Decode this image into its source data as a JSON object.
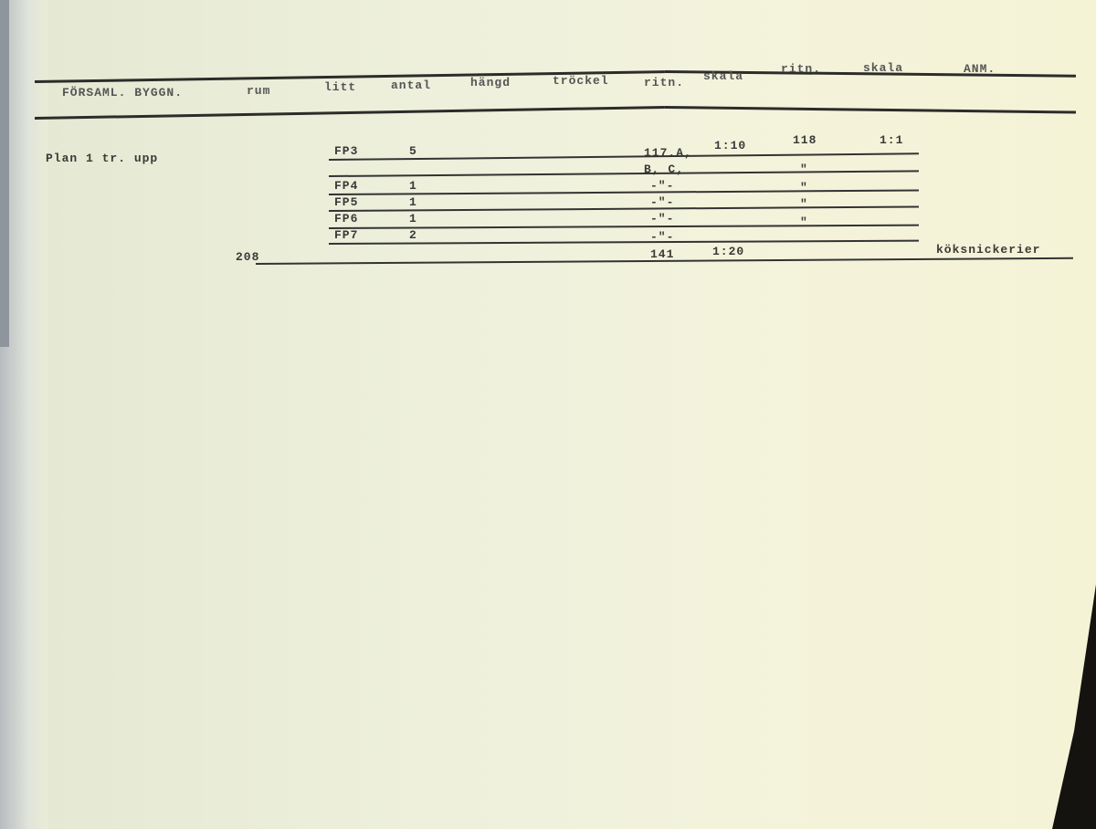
{
  "header": {
    "columns": [
      "FÖRSAML. BYGGN.",
      "rum",
      "litt",
      "antal",
      "hängd",
      "tröckel",
      "ritn.",
      "skala",
      "ritn.",
      "skala",
      "ANM."
    ]
  },
  "section_label": "Plan 1 tr. upp",
  "rows": [
    {
      "litt": "FP3",
      "antal": "5",
      "ritn": "117.A,",
      "skala": "1:10",
      "ritn2": "118",
      "skala2": "1:1"
    },
    {
      "ritn": "B, C,",
      "ritn2": "\""
    },
    {
      "litt": "FP4",
      "antal": "1",
      "ritn": "-\"-",
      "ritn2": "\""
    },
    {
      "litt": "FP5",
      "antal": "1",
      "ritn": "-\"-",
      "ritn2": "\""
    },
    {
      "litt": "FP6",
      "antal": "1",
      "ritn": "-\"-",
      "ritn2": "\""
    },
    {
      "litt": "FP7",
      "antal": "2",
      "ritn": "-\"-"
    },
    {
      "rum": "208",
      "ritn": "141",
      "skala": "1:20",
      "anm": "köksnickerier"
    }
  ]
}
